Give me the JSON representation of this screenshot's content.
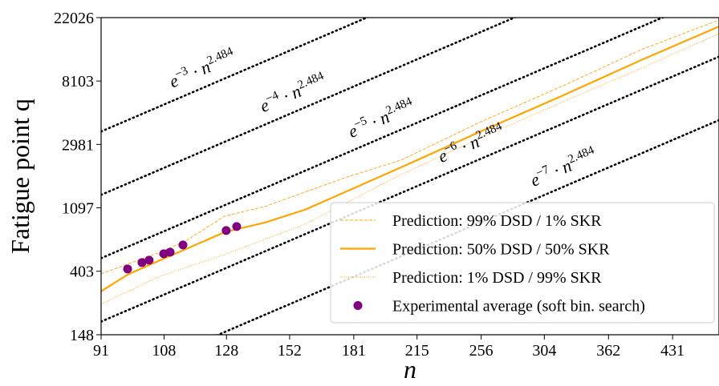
{
  "chart_data": {
    "type": "line",
    "xlabel": "n",
    "ylabel": "Fatigue point q",
    "xscale": "log",
    "yscale": "log",
    "xlim": [
      91,
      489
    ],
    "ylim": [
      148,
      22026
    ],
    "xticks": [
      91,
      108,
      128,
      152,
      181,
      215,
      256,
      304,
      362,
      431
    ],
    "yticks": [
      148,
      403,
      1097,
      2981,
      8103,
      22026
    ],
    "legend": "lower right",
    "series": [
      {
        "name": "Prediction: 99% DSD / 1% SKR",
        "color": "#ffa500",
        "style": "dashed",
        "x": [
          91,
          106.9,
          114.2,
          127.4,
          142.1,
          176.8,
          205.9,
          256,
          318.5,
          396,
          489
        ],
        "values": [
          387,
          545,
          642,
          962,
          1120,
          1763,
          2330,
          4270,
          7430,
          13300,
          21200
        ]
      },
      {
        "name": "Prediction: 50% DSD / 50% SKR",
        "color": "#ffa500",
        "style": "solid",
        "x": [
          91,
          97.9,
          106.9,
          114.2,
          127.4,
          142.1,
          158.5,
          205.9,
          256,
          318.5,
          396,
          489
        ],
        "values": [
          294,
          383,
          480,
          566,
          748,
          869,
          1064,
          2078,
          3670,
          6390,
          11290,
          19150
        ]
      },
      {
        "name": "Prediction: 1% DSD / 99% SKR",
        "color": "#ffa500",
        "style": "dotted",
        "x": [
          91,
          106.9,
          127.4,
          158.5,
          205.9,
          256,
          318.5,
          396,
          489
        ],
        "values": [
          240,
          373,
          525,
          847,
          1853,
          3315,
          5770,
          9950,
          17100
        ]
      },
      {
        "name": "Experimental average (soft bin. search)",
        "color": "#800080",
        "style": "marker",
        "x": [
          97.8,
          101.7,
          103.7,
          107.9,
          109.8,
          113.7,
          127.9,
          131.6
        ],
        "values": [
          418,
          462,
          480,
          531,
          545,
          610,
          766,
          816
        ]
      }
    ],
    "guides": [
      {
        "label": [
          "e",
          "−3",
          " · n",
          "2.484"
        ],
        "color": "#000000",
        "x": [
          91,
          489
        ],
        "values": [
          3656,
          239000
        ]
      },
      {
        "label": [
          "e",
          "−4",
          " · n",
          "2.484"
        ],
        "color": "#000000",
        "x": [
          91,
          489
        ],
        "values": [
          1345,
          87900
        ]
      },
      {
        "label": [
          "e",
          "−5",
          " · n",
          "2.484"
        ],
        "color": "#000000",
        "x": [
          91,
          489
        ],
        "values": [
          495,
          32300
        ]
      },
      {
        "label": [
          "e",
          "−6",
          " · n",
          "2.484"
        ],
        "color": "#000000",
        "x": [
          91,
          489
        ],
        "values": [
          182,
          11900
        ]
      },
      {
        "label": [
          "e",
          "−7",
          " · n",
          "2.484"
        ],
        "color": "#000000",
        "x": [
          91,
          489
        ],
        "values": [
          67,
          4370
        ]
      }
    ]
  }
}
